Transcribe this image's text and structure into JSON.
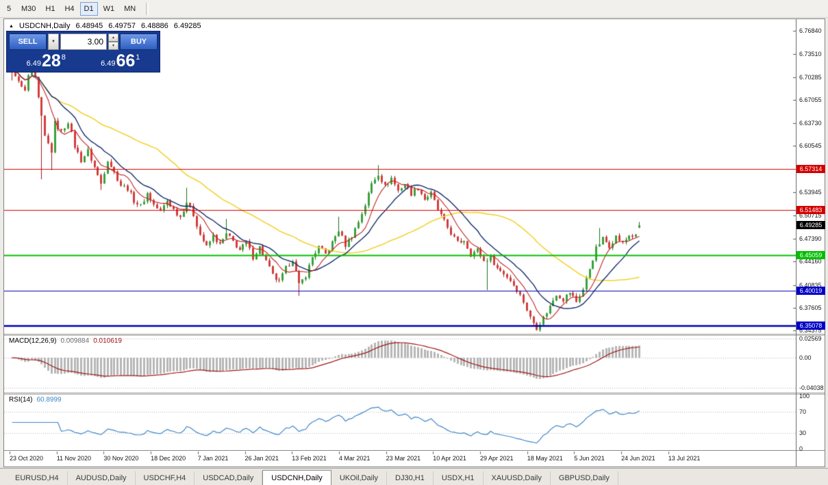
{
  "toolbar": {
    "timeframes": [
      "5",
      "M30",
      "H1",
      "H4",
      "D1",
      "W1",
      "MN"
    ],
    "selected": "D1"
  },
  "icons": {
    "collapse_up": "▲",
    "chevron_down": "▼",
    "stepper_up": "▲",
    "stepper_down": "▼"
  },
  "chart": {
    "title": {
      "icon": "▲",
      "symbol": "USDCNH,Daily",
      "open": "6.48945",
      "high": "6.49757",
      "low": "6.48886",
      "close": "6.49285"
    },
    "trade_panel": {
      "sell_label": "SELL",
      "buy_label": "BUY",
      "lot_value": "3.00",
      "sell_price": {
        "small": "6.49",
        "big": "28",
        "sup": "8"
      },
      "buy_price": {
        "small": "6.49",
        "big": "66",
        "sup": "1"
      }
    },
    "price_axis": {
      "labels": [
        "6.76840",
        "6.73510",
        "6.70285",
        "6.67055",
        "6.63730",
        "6.60545",
        "6.53945",
        "6.50715",
        "6.47390",
        "6.44160",
        "6.40835",
        "6.37605",
        "6.34375"
      ],
      "tags": [
        {
          "text": "6.57314",
          "bg": "#d40000"
        },
        {
          "text": "6.51483",
          "bg": "#d40000"
        },
        {
          "text": "6.49285",
          "bg": "#000000"
        },
        {
          "text": "6.45059",
          "bg": "#00bf00"
        },
        {
          "text": "6.40019",
          "bg": "#0000c8"
        },
        {
          "text": "6.35078",
          "bg": "#0000c8"
        }
      ]
    }
  },
  "indicators": {
    "macd_name": "MACD(12,26,9)",
    "macd_value1": "0.009884",
    "macd_value2": "0.010619",
    "rsi_name": "RSI(14)",
    "rsi_value": "60.8999"
  },
  "dates": [
    "23 Oct 2020",
    "11 Nov 2020",
    "30 Nov 2020",
    "18 Dec 2020",
    "7 Jan 2021",
    "26 Jan 2021",
    "13 Feb 2021",
    "4 Mar 2021",
    "23 Mar 2021",
    "10 Apr 2021",
    "29 Apr 2021",
    "18 May 2021",
    "5 Jun 2021",
    "24 Jun 2021",
    "13 Jul 2021"
  ],
  "tabbar": {
    "items": [
      "EURUSD,H4",
      "AUDUSD,Daily",
      "USDCHF,H4",
      "USDCAD,Daily",
      "USDCNH,Daily",
      "UKOil,Daily",
      "DJ30,H1",
      "USDX,H1",
      "XAUUSD,Daily",
      "GBPUSD,Daily"
    ],
    "selected": "USDCNH,Daily"
  },
  "chart_data": {
    "type": "candlestick",
    "symbol": "USDCNH,Daily",
    "num_candles": 191,
    "y_axis": {
      "top_price": 6.7829,
      "bottom_price": 6.3392
    },
    "price_keypoints": [
      [
        0,
        6.718
      ],
      [
        2,
        6.695
      ],
      [
        4,
        6.682
      ],
      [
        6,
        6.728
      ],
      [
        8,
        6.672
      ],
      [
        10,
        6.618
      ],
      [
        12,
        6.598
      ],
      [
        13,
        6.638
      ],
      [
        15,
        6.625
      ],
      [
        17,
        6.64
      ],
      [
        19,
        6.605
      ],
      [
        21,
        6.585
      ],
      [
        23,
        6.598
      ],
      [
        25,
        6.575
      ],
      [
        27,
        6.552
      ],
      [
        29,
        6.586
      ],
      [
        31,
        6.568
      ],
      [
        33,
        6.55
      ],
      [
        35,
        6.545
      ],
      [
        37,
        6.528
      ],
      [
        39,
        6.52
      ],
      [
        41,
        6.538
      ],
      [
        43,
        6.522
      ],
      [
        45,
        6.512
      ],
      [
        47,
        6.528
      ],
      [
        49,
        6.515
      ],
      [
        51,
        6.505
      ],
      [
        53,
        6.526
      ],
      [
        55,
        6.508
      ],
      [
        57,
        6.48
      ],
      [
        59,
        6.462
      ],
      [
        61,
        6.478
      ],
      [
        63,
        6.465
      ],
      [
        65,
        6.48
      ],
      [
        67,
        6.47
      ],
      [
        69,
        6.458
      ],
      [
        71,
        6.468
      ],
      [
        73,
        6.448
      ],
      [
        75,
        6.462
      ],
      [
        77,
        6.442
      ],
      [
        79,
        6.422
      ],
      [
        81,
        6.412
      ],
      [
        83,
        6.432
      ],
      [
        85,
        6.445
      ],
      [
        87,
        6.408
      ],
      [
        89,
        6.422
      ],
      [
        91,
        6.448
      ],
      [
        93,
        6.462
      ],
      [
        95,
        6.452
      ],
      [
        97,
        6.468
      ],
      [
        99,
        6.486
      ],
      [
        101,
        6.465
      ],
      [
        103,
        6.478
      ],
      [
        105,
        6.498
      ],
      [
        107,
        6.522
      ],
      [
        109,
        6.552
      ],
      [
        111,
        6.566
      ],
      [
        113,
        6.548
      ],
      [
        115,
        6.56
      ],
      [
        117,
        6.542
      ],
      [
        119,
        6.552
      ],
      [
        121,
        6.538
      ],
      [
        123,
        6.546
      ],
      [
        125,
        6.53
      ],
      [
        127,
        6.538
      ],
      [
        129,
        6.515
      ],
      [
        131,
        6.498
      ],
      [
        133,
        6.482
      ],
      [
        135,
        6.468
      ],
      [
        137,
        6.472
      ],
      [
        139,
        6.452
      ],
      [
        141,
        6.458
      ],
      [
        143,
        6.442
      ],
      [
        145,
        6.448
      ],
      [
        147,
        6.432
      ],
      [
        149,
        6.425
      ],
      [
        151,
        6.415
      ],
      [
        153,
        6.402
      ],
      [
        155,
        6.385
      ],
      [
        157,
        6.362
      ],
      [
        159,
        6.348
      ],
      [
        161,
        6.362
      ],
      [
        163,
        6.378
      ],
      [
        165,
        6.396
      ],
      [
        167,
        6.388
      ],
      [
        169,
        6.398
      ],
      [
        171,
        6.385
      ],
      [
        173,
        6.402
      ],
      [
        175,
        6.432
      ],
      [
        177,
        6.46
      ],
      [
        179,
        6.474
      ],
      [
        181,
        6.464
      ],
      [
        183,
        6.477
      ],
      [
        185,
        6.467
      ],
      [
        187,
        6.479
      ],
      [
        189,
        6.477
      ],
      [
        190,
        6.492
      ]
    ],
    "wick_events": [
      {
        "i": 0,
        "high": 6.747,
        "low": 6.698
      },
      {
        "i": 6,
        "high": 6.739
      },
      {
        "i": 9,
        "low": 6.558
      },
      {
        "i": 12,
        "low": 6.571
      },
      {
        "i": 27,
        "low": 6.543
      },
      {
        "i": 53,
        "high": 6.546
      },
      {
        "i": 65,
        "high": 6.502
      },
      {
        "i": 87,
        "low": 6.393
      },
      {
        "i": 99,
        "high": 6.505
      },
      {
        "i": 111,
        "high": 6.578
      },
      {
        "i": 144,
        "low": 6.401
      },
      {
        "i": 160,
        "low": 6.342
      },
      {
        "i": 178,
        "high": 6.489
      }
    ],
    "last_candle": {
      "open": 6.48945,
      "high": 6.49757,
      "low": 6.48886,
      "close": 6.49285
    },
    "hlines": [
      {
        "price": 6.57314,
        "color": "#d40000",
        "width": 1
      },
      {
        "price": 6.51483,
        "color": "#d40000",
        "width": 1
      },
      {
        "price": 6.45059,
        "color": "#00bf00",
        "width": 2
      },
      {
        "price": 6.40019,
        "color": "#0000b4",
        "width": 1
      },
      {
        "price": 6.35078,
        "color": "#0000b4",
        "width": 2.5
      }
    ],
    "moving_averages": [
      {
        "period": 45,
        "color": "#f2d232",
        "width": 1.6
      },
      {
        "period": 15,
        "color": "#102a6a",
        "width": 1.4
      },
      {
        "period": 7,
        "color": "#c22222",
        "width": 1.1
      }
    ],
    "macd": {
      "params": "12,26,9",
      "current_macd": 0.009884,
      "current_signal": 0.010619,
      "axis_top": 0.029,
      "axis_bottom": -0.0464,
      "axis_values": [
        0.02569,
        0,
        -0.04038
      ],
      "axis_labels": [
        "0.02569",
        "0.00",
        "-0.04038"
      ]
    },
    "rsi": {
      "period": 14,
      "current": 60.8999,
      "axis_top": 102.6,
      "axis_bottom": -2.6,
      "axis_values": [
        100,
        70,
        30,
        0
      ],
      "axis_labels": [
        "100",
        "70",
        "30",
        "0"
      ],
      "levels": [
        70,
        30
      ]
    },
    "colors": {
      "up_fill": "#3aa13a",
      "up_stroke": "#166e16",
      "down_fill": "#d43c3c",
      "down_stroke": "#9c1414",
      "macd_hist": "#b6b6b6",
      "macd_hist_edge": "#9a9a9a",
      "macd_signal": "#a01414",
      "rsi_line": "#3d85c8",
      "grid_dotted": "#b4b4b4",
      "tick": "#666666"
    }
  }
}
